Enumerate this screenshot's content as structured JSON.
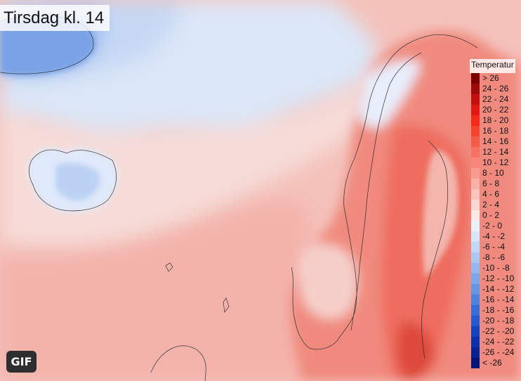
{
  "title": "Tirsdag kl. 14",
  "gif_label": "GIF",
  "legend": {
    "title": "Temperatur",
    "items": [
      {
        "label": "> 26",
        "color": "#7a0000"
      },
      {
        "label": "24 - 26",
        "color": "#9c0a0a"
      },
      {
        "label": "22 - 24",
        "color": "#c30f0f"
      },
      {
        "label": "20 - 22",
        "color": "#e01a12"
      },
      {
        "label": "18 - 20",
        "color": "#f22a1a"
      },
      {
        "label": "16 - 18",
        "color": "#f4432f"
      },
      {
        "label": "14 - 16",
        "color": "#f45b48"
      },
      {
        "label": "12 - 14",
        "color": "#f57262"
      },
      {
        "label": "10 - 12",
        "color": "#f6877a"
      },
      {
        "label": "8 - 10",
        "color": "#f79c91"
      },
      {
        "label": "6 - 8",
        "color": "#f8b0a8"
      },
      {
        "label": "4 - 6",
        "color": "#fac3bd"
      },
      {
        "label": "2 - 4",
        "color": "#fcd6d2"
      },
      {
        "label": "0 - 2",
        "color": "#fde8e6"
      },
      {
        "label": "-2 - 0",
        "color": "#eaf1fb"
      },
      {
        "label": "-4 - -2",
        "color": "#d6e5f8"
      },
      {
        "label": "-6 - -4",
        "color": "#c1d7f5"
      },
      {
        "label": "-8 - -6",
        "color": "#abc8f1"
      },
      {
        "label": "-10 - -8",
        "color": "#94b8ed"
      },
      {
        "label": "-12 - -10",
        "color": "#7ca7e9"
      },
      {
        "label": "-14 - -12",
        "color": "#6595e4"
      },
      {
        "label": "-16 - -14",
        "color": "#4e82df"
      },
      {
        "label": "-18 - -16",
        "color": "#386ed9"
      },
      {
        "label": "-20 - -18",
        "color": "#2459d0"
      },
      {
        "label": "-22 - -20",
        "color": "#1544c2"
      },
      {
        "label": "-24 - -22",
        "color": "#0c33ad"
      },
      {
        "label": "-26 - -24",
        "color": "#062394"
      },
      {
        "label": "< -26",
        "color": "#02157a"
      }
    ]
  }
}
